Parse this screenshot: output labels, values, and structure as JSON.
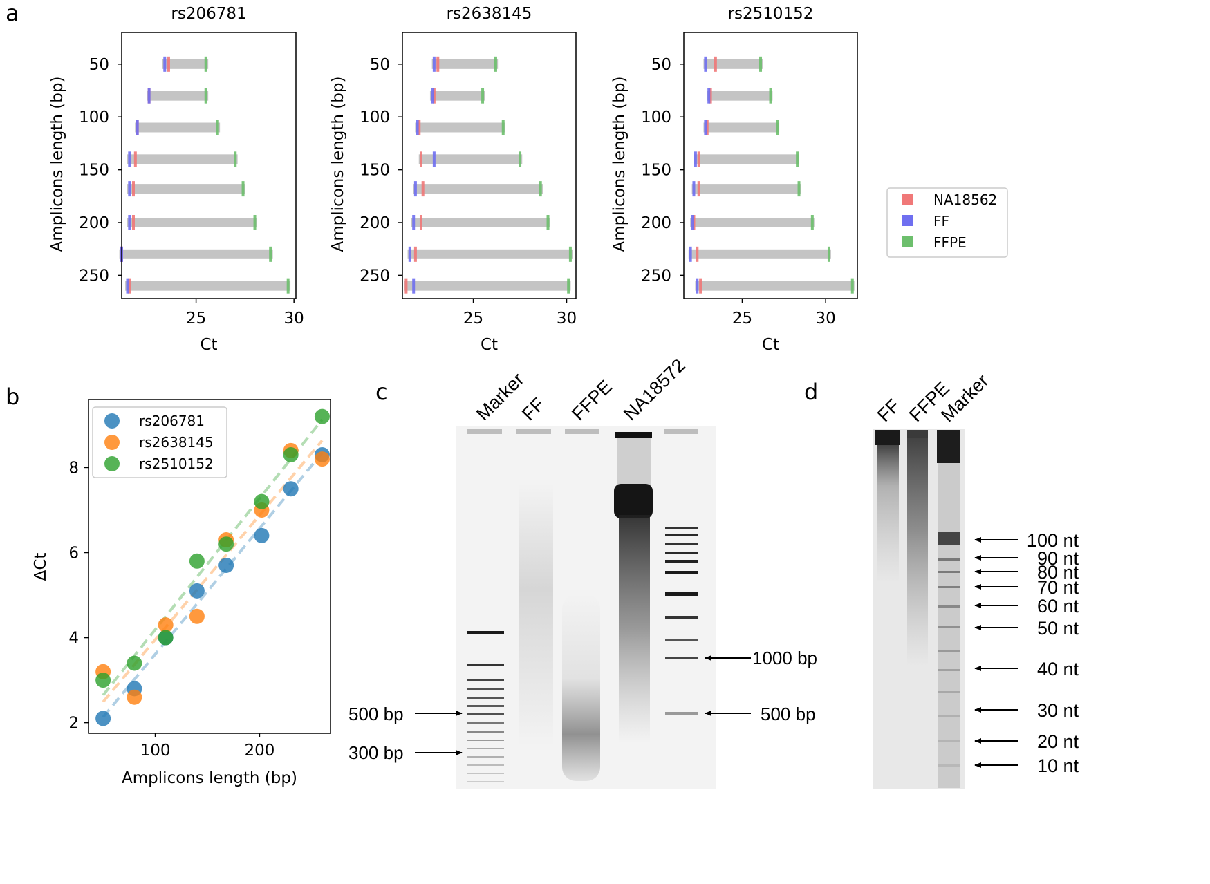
{
  "panel_labels": [
    "a",
    "b",
    "c",
    "d"
  ],
  "chart_data": [
    {
      "panel": "a",
      "type": "scatter",
      "title": "rs206781",
      "xlabel": "Ct",
      "ylabel": "Amplicons length (bp)",
      "xticks": [
        25,
        30
      ],
      "yticks": [
        50,
        100,
        150,
        200,
        250
      ],
      "amplicon_lengths": [
        50,
        80,
        110,
        140,
        168,
        200,
        230,
        260
      ],
      "series": [
        {
          "name": "NA18562",
          "color": "#f07878",
          "values": [
            23.6,
            22.6,
            22.0,
            21.9,
            21.8,
            21.8,
            21.2,
            21.6
          ]
        },
        {
          "name": "FF",
          "color": "#6f6ff0",
          "values": [
            23.4,
            22.6,
            22.0,
            21.6,
            21.6,
            21.6,
            21.2,
            21.5
          ]
        },
        {
          "name": "FFPE",
          "color": "#6dbf6d",
          "values": [
            25.5,
            25.5,
            26.1,
            27.0,
            27.4,
            28.0,
            28.8,
            29.7
          ]
        }
      ]
    },
    {
      "panel": "a",
      "type": "scatter",
      "title": "rs2638145",
      "xlabel": "Ct",
      "ylabel": "Amplicons length (bp)",
      "xticks": [
        25,
        30
      ],
      "yticks": [
        50,
        100,
        150,
        200,
        250
      ],
      "amplicon_lengths": [
        50,
        80,
        110,
        140,
        168,
        200,
        230,
        260
      ],
      "series": [
        {
          "name": "NA18562",
          "color": "#f07878",
          "values": [
            23.1,
            22.9,
            22.1,
            22.2,
            22.3,
            22.2,
            21.9,
            21.4
          ]
        },
        {
          "name": "FF",
          "color": "#6f6ff0",
          "values": [
            22.9,
            22.8,
            22.0,
            22.9,
            21.9,
            21.8,
            21.6,
            21.8
          ]
        },
        {
          "name": "FFPE",
          "color": "#6dbf6d",
          "values": [
            26.2,
            25.5,
            26.6,
            27.5,
            28.6,
            29.0,
            30.2,
            30.1
          ]
        }
      ]
    },
    {
      "panel": "a",
      "type": "scatter",
      "title": "rs2510152",
      "xlabel": "Ct",
      "ylabel": "Amplicons length (bp)",
      "xticks": [
        25,
        30
      ],
      "yticks": [
        50,
        100,
        150,
        200,
        250
      ],
      "amplicon_lengths": [
        50,
        80,
        110,
        140,
        168,
        200,
        230,
        260
      ],
      "series": [
        {
          "name": "NA18562",
          "color": "#f07878",
          "values": [
            23.4,
            23.1,
            22.9,
            22.4,
            22.4,
            22.1,
            22.3,
            22.5
          ]
        },
        {
          "name": "FF",
          "color": "#6f6ff0",
          "values": [
            22.8,
            23.0,
            22.8,
            22.2,
            22.1,
            22.0,
            21.9,
            22.3
          ]
        },
        {
          "name": "FFPE",
          "color": "#6dbf6d",
          "values": [
            26.1,
            26.7,
            27.1,
            28.3,
            28.4,
            29.2,
            30.2,
            31.6
          ]
        }
      ]
    },
    {
      "panel": "b",
      "type": "scatter",
      "xlabel": "Amplicons length (bp)",
      "ylabel": "ΔCt",
      "xticks": [
        100,
        200
      ],
      "yticks": [
        2,
        4,
        6,
        8
      ],
      "legend": "top-left",
      "trendlines": "dashed",
      "x": [
        50,
        80,
        110,
        140,
        168,
        202,
        230,
        260
      ],
      "series": [
        {
          "name": "rs206781",
          "color": "#1f77b4",
          "values": [
            2.1,
            2.8,
            4.0,
            5.1,
            5.7,
            6.4,
            7.5,
            8.3
          ]
        },
        {
          "name": "rs2638145",
          "color": "#ff7f0e",
          "values": [
            3.2,
            2.6,
            4.3,
            4.5,
            6.3,
            7.0,
            8.4,
            8.2
          ]
        },
        {
          "name": "rs2510152",
          "color": "#2ca02c",
          "values": [
            3.0,
            3.4,
            4.0,
            5.8,
            6.2,
            7.2,
            8.3,
            9.2
          ]
        }
      ]
    }
  ],
  "gel_c": {
    "lanes": [
      "Marker",
      "FF",
      "FFPE",
      "NA18572"
    ],
    "left_markers": [
      "500 bp",
      "300 bp"
    ],
    "right_markers": [
      "1000 bp",
      "500 bp"
    ]
  },
  "gel_d": {
    "lanes": [
      "FF",
      "FFPE",
      "Marker"
    ],
    "right_markers": [
      "100 nt",
      "90 nt",
      "80 nt",
      "70 nt",
      "60 nt",
      "50 nt",
      "40 nt",
      "30 nt",
      "20 nt",
      "10 nt"
    ]
  }
}
